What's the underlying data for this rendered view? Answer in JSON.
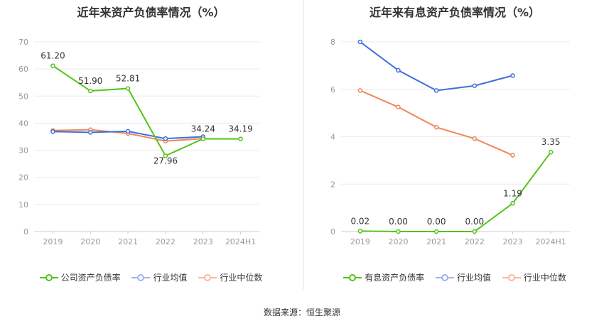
{
  "footer": {
    "source_label": "数据来源：",
    "source_value": "恒生聚源"
  },
  "chart_data": [
    {
      "type": "line",
      "title": "近年来资产负债率情况（%）",
      "categories": [
        "2019",
        "2020",
        "2021",
        "2022",
        "2023",
        "2024H1"
      ],
      "ylim": [
        0,
        70
      ],
      "yticks": [
        0,
        10,
        20,
        30,
        40,
        50,
        60,
        70
      ],
      "grid": true,
      "legend_position": "bottom",
      "series": [
        {
          "name": "公司资产负债率",
          "color": "#52c41a",
          "values": [
            61.2,
            51.9,
            52.81,
            27.96,
            34.24,
            34.19
          ],
          "labels": [
            "61.20",
            "51.90",
            "52.81",
            "27.96",
            "34.24",
            "34.19"
          ]
        },
        {
          "name": "行业均值",
          "color": "#3e6fd8",
          "values": [
            36.9,
            36.6,
            37.0,
            34.3,
            35.0,
            null
          ]
        },
        {
          "name": "行业中位数",
          "color": "#f0855b",
          "values": [
            37.3,
            37.6,
            36.2,
            33.4,
            34.3,
            null
          ]
        }
      ]
    },
    {
      "type": "line",
      "title": "近年来有息资产负债率情况（%）",
      "categories": [
        "2019",
        "2020",
        "2021",
        "2022",
        "2023",
        "2024H1"
      ],
      "ylim": [
        0,
        8
      ],
      "yticks": [
        0,
        2,
        4,
        6,
        8
      ],
      "grid": true,
      "legend_position": "bottom",
      "series": [
        {
          "name": "有息资产负债率",
          "color": "#52c41a",
          "values": [
            0.02,
            0.0,
            0.0,
            0.0,
            1.19,
            3.35
          ],
          "labels": [
            "0.02",
            "0.00",
            "0.00",
            "0.00",
            "1.19",
            "3.35"
          ]
        },
        {
          "name": "行业均值",
          "color": "#3e6fd8",
          "values": [
            8.0,
            6.8,
            5.95,
            6.15,
            6.58,
            null
          ]
        },
        {
          "name": "行业中位数",
          "color": "#f0855b",
          "values": [
            5.95,
            5.25,
            4.4,
            3.92,
            3.22,
            null
          ]
        }
      ]
    }
  ]
}
